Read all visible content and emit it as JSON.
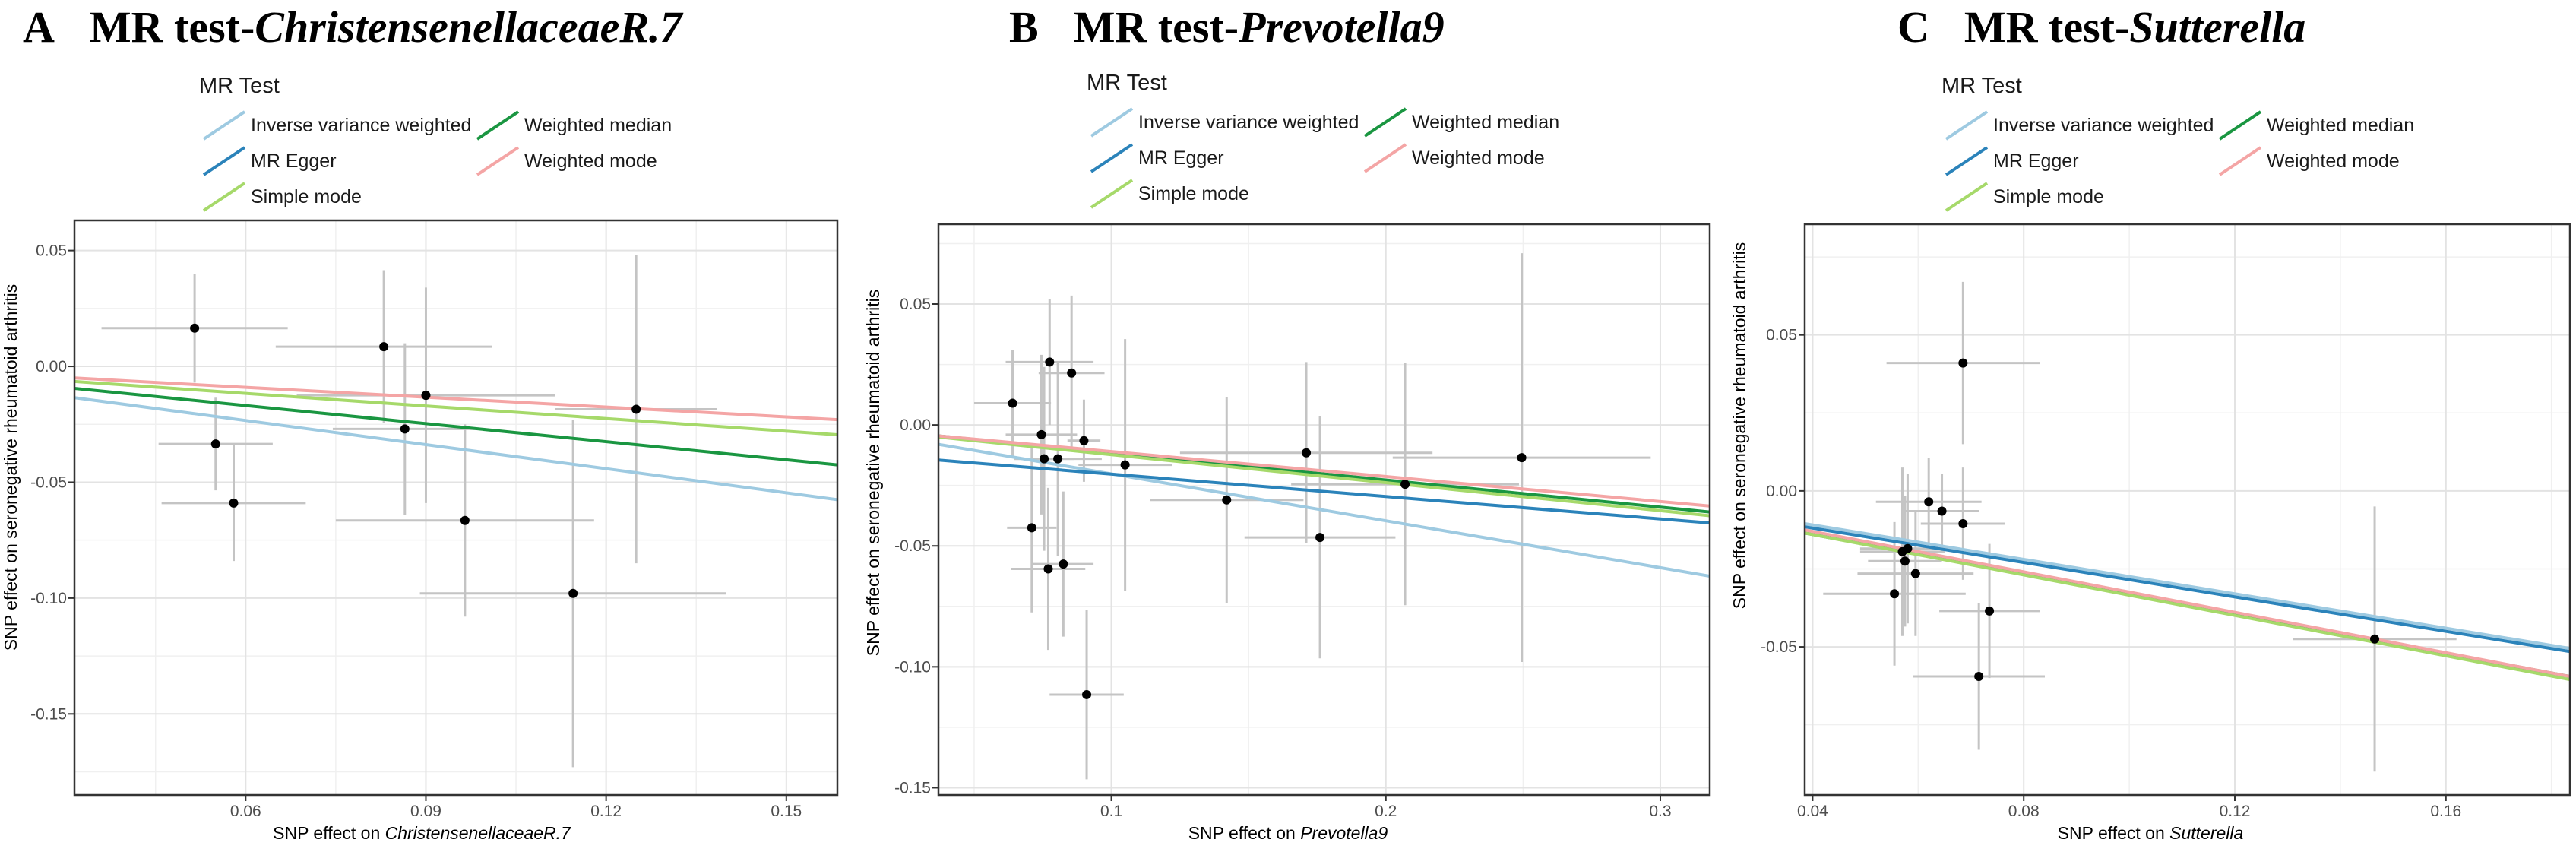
{
  "legend_title": "MR Test",
  "methods": [
    {
      "name": "Inverse variance weighted",
      "color": "#9ecae1"
    },
    {
      "name": "MR Egger",
      "color": "#2b83ba"
    },
    {
      "name": "Simple mode",
      "color": "#a6d96a"
    },
    {
      "name": "Weighted median",
      "color": "#1a9641"
    },
    {
      "name": "Weighted mode",
      "color": "#f4a5a5"
    }
  ],
  "ylabel": "SNP effect on seronegative rheumatoid arthritis",
  "chart_data": [
    {
      "type": "scatter",
      "letter": "A",
      "title_prefix": "MR test-",
      "title_italic": "ChristensenellaceaeR.7",
      "xlabel_prefix": "SNP effect on ",
      "xlabel_italic": "ChristensenellaceaeR.7",
      "xlim": [
        0.0315,
        0.1585
      ],
      "ylim": [
        -0.185,
        0.063
      ],
      "xticks": [
        0.06,
        0.09,
        0.12,
        0.15
      ],
      "xtick_labels": [
        "0.06",
        "0.09",
        "0.12",
        "0.15"
      ],
      "yticks": [
        -0.15,
        -0.1,
        -0.05,
        0.0,
        0.05
      ],
      "ytick_labels": [
        "-0.15",
        "-0.10",
        "-0.05",
        "0.00",
        "0.05"
      ],
      "points": [
        {
          "x": 0.0515,
          "y": 0.0165,
          "xerr": 0.0155,
          "yerr": 0.0235
        },
        {
          "x": 0.055,
          "y": -0.0335,
          "xerr": 0.0095,
          "yerr": 0.02
        },
        {
          "x": 0.058,
          "y": -0.059,
          "xerr": 0.012,
          "yerr": 0.025
        },
        {
          "x": 0.083,
          "y": 0.0085,
          "xerr": 0.018,
          "yerr": 0.033
        },
        {
          "x": 0.0865,
          "y": -0.027,
          "xerr": 0.012,
          "yerr": 0.037
        },
        {
          "x": 0.09,
          "y": -0.0125,
          "xerr": 0.0215,
          "yerr": 0.0465
        },
        {
          "x": 0.0965,
          "y": -0.0665,
          "xerr": 0.0215,
          "yerr": 0.0415
        },
        {
          "x": 0.1145,
          "y": -0.098,
          "xerr": 0.0255,
          "yerr": 0.075
        },
        {
          "x": 0.125,
          "y": -0.0185,
          "xerr": 0.0135,
          "yerr": 0.0665
        }
      ],
      "lines": [
        {
          "method": "Inverse variance weighted",
          "y_start": -0.0135,
          "y_end": -0.0575
        },
        {
          "method": "Weighted median",
          "y_start": -0.0095,
          "y_end": -0.0425
        },
        {
          "method": "Simple mode",
          "y_start": -0.0065,
          "y_end": -0.0295
        },
        {
          "method": "Weighted mode",
          "y_start": -0.005,
          "y_end": -0.023
        }
      ]
    },
    {
      "type": "scatter",
      "letter": "B",
      "title_prefix": "MR test-",
      "title_italic": "Prevotella9",
      "xlabel_prefix": "SNP effect on ",
      "xlabel_italic": "Prevotella9",
      "xlim": [
        0.037,
        0.318
      ],
      "ylim": [
        -0.153,
        0.083
      ],
      "xticks": [
        0.1,
        0.2,
        0.3
      ],
      "xtick_labels": [
        "0.1",
        "0.2",
        "0.3"
      ],
      "yticks": [
        -0.15,
        -0.1,
        -0.05,
        0.0,
        0.05
      ],
      "ytick_labels": [
        "-0.15",
        "-0.10",
        "-0.05",
        "0.00",
        "0.05"
      ],
      "points": [
        {
          "x": 0.064,
          "y": 0.009,
          "xerr": 0.014,
          "yerr": 0.022
        },
        {
          "x": 0.071,
          "y": -0.0425,
          "xerr": 0.009,
          "yerr": 0.035
        },
        {
          "x": 0.0745,
          "y": -0.004,
          "xerr": 0.013,
          "yerr": 0.033
        },
        {
          "x": 0.0755,
          "y": -0.014,
          "xerr": 0.011,
          "yerr": 0.038
        },
        {
          "x": 0.0775,
          "y": 0.026,
          "xerr": 0.016,
          "yerr": 0.026
        },
        {
          "x": 0.077,
          "y": -0.0595,
          "xerr": 0.0135,
          "yerr": 0.0335
        },
        {
          "x": 0.0805,
          "y": -0.014,
          "xerr": 0.016,
          "yerr": 0.04
        },
        {
          "x": 0.0825,
          "y": -0.0575,
          "xerr": 0.011,
          "yerr": 0.03
        },
        {
          "x": 0.0855,
          "y": 0.0215,
          "xerr": 0.012,
          "yerr": 0.032
        },
        {
          "x": 0.09,
          "y": -0.0065,
          "xerr": 0.006,
          "yerr": 0.017
        },
        {
          "x": 0.091,
          "y": -0.1115,
          "xerr": 0.0135,
          "yerr": 0.035
        },
        {
          "x": 0.105,
          "y": -0.0165,
          "xerr": 0.017,
          "yerr": 0.052
        },
        {
          "x": 0.142,
          "y": -0.031,
          "xerr": 0.028,
          "yerr": 0.0425
        },
        {
          "x": 0.171,
          "y": -0.0115,
          "xerr": 0.046,
          "yerr": 0.0375
        },
        {
          "x": 0.176,
          "y": -0.0465,
          "xerr": 0.0275,
          "yerr": 0.05
        },
        {
          "x": 0.207,
          "y": -0.0245,
          "xerr": 0.0415,
          "yerr": 0.05
        },
        {
          "x": 0.2495,
          "y": -0.0135,
          "xerr": 0.047,
          "yerr": 0.0845
        }
      ],
      "lines": [
        {
          "method": "Inverse variance weighted",
          "y_start": -0.008,
          "y_end": -0.0625
        },
        {
          "method": "MR Egger",
          "y_start": -0.0145,
          "y_end": -0.0405
        },
        {
          "method": "Weighted median",
          "y_start": -0.0045,
          "y_end": -0.036
        },
        {
          "method": "Simple mode",
          "y_start": -0.005,
          "y_end": -0.0375
        },
        {
          "method": "Weighted mode",
          "y_start": -0.0045,
          "y_end": -0.0335
        }
      ]
    },
    {
      "type": "scatter",
      "letter": "C",
      "title_prefix": "MR test-",
      "title_italic": "Sutterella",
      "xlabel_prefix": "SNP effect on ",
      "xlabel_italic": "Sutterella",
      "xlim": [
        0.0385,
        0.1835
      ],
      "ylim": [
        -0.0975,
        0.0855
      ],
      "xticks": [
        0.04,
        0.08,
        0.12,
        0.16
      ],
      "xtick_labels": [
        "0.04",
        "0.08",
        "0.12",
        "0.16"
      ],
      "yticks": [
        -0.05,
        0.0,
        0.05
      ],
      "ytick_labels": [
        "-0.05",
        "0.00",
        "0.05"
      ],
      "points": [
        {
          "x": 0.0555,
          "y": -0.033,
          "xerr": 0.0135,
          "yerr": 0.023
        },
        {
          "x": 0.057,
          "y": -0.0195,
          "xerr": 0.008,
          "yerr": 0.027
        },
        {
          "x": 0.0575,
          "y": -0.0225,
          "xerr": 0.007,
          "yerr": 0.021
        },
        {
          "x": 0.058,
          "y": -0.0185,
          "xerr": 0.009,
          "yerr": 0.024
        },
        {
          "x": 0.0595,
          "y": -0.0265,
          "xerr": 0.011,
          "yerr": 0.02
        },
        {
          "x": 0.062,
          "y": -0.0035,
          "xerr": 0.01,
          "yerr": 0.014
        },
        {
          "x": 0.0645,
          "y": -0.0065,
          "xerr": 0.007,
          "yerr": 0.012
        },
        {
          "x": 0.0685,
          "y": 0.041,
          "xerr": 0.0145,
          "yerr": 0.026
        },
        {
          "x": 0.0685,
          "y": -0.0105,
          "xerr": 0.008,
          "yerr": 0.018
        },
        {
          "x": 0.0715,
          "y": -0.0595,
          "xerr": 0.0125,
          "yerr": 0.0235
        },
        {
          "x": 0.0735,
          "y": -0.0385,
          "xerr": 0.0095,
          "yerr": 0.0215
        },
        {
          "x": 0.1465,
          "y": -0.0475,
          "xerr": 0.0155,
          "yerr": 0.0425
        }
      ],
      "lines": [
        {
          "method": "Inverse variance weighted",
          "y_start": -0.0105,
          "y_end": -0.0505
        },
        {
          "method": "MR Egger",
          "y_start": -0.0115,
          "y_end": -0.0515
        },
        {
          "method": "Weighted median",
          "y_start": -0.0135,
          "y_end": -0.0595
        },
        {
          "method": "Simple mode",
          "y_start": -0.0135,
          "y_end": -0.0605
        },
        {
          "method": "Weighted mode",
          "y_start": -0.0125,
          "y_end": -0.0595
        }
      ]
    }
  ]
}
